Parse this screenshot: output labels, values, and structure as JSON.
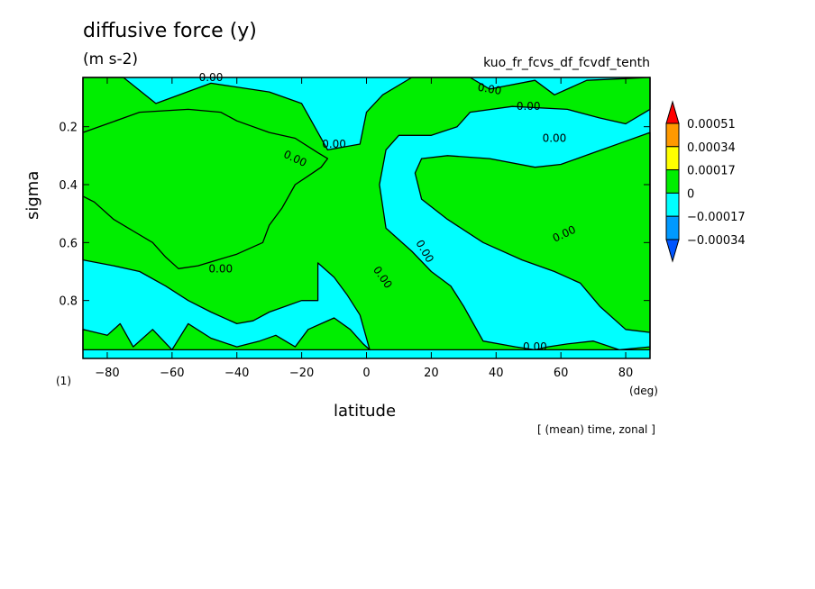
{
  "chart_data": {
    "type": "heatmap",
    "title": "diffusive force (y)",
    "units": "(m s-2)",
    "run_name": "kuo_fr_fcvs_df_fcvdf_tenth",
    "xlabel": "latitude",
    "ylabel": "sigma",
    "x_unit": "(deg)",
    "panel_index": "(1)",
    "note": "[ (mean) time, zonal ]",
    "xlim": [
      -87.5,
      87.5
    ],
    "ylim": [
      1.0,
      0.03
    ],
    "x_ticks": [
      -80,
      -60,
      -40,
      -20,
      0,
      20,
      40,
      60,
      80
    ],
    "x_tick_labels": [
      "−80",
      "−60",
      "−40",
      "−20",
      "0",
      "20",
      "40",
      "60",
      "80"
    ],
    "y_ticks": [
      0.2,
      0.4,
      0.6,
      0.8
    ],
    "y_tick_labels": [
      "0.2",
      "0.4",
      "0.6",
      "0.8"
    ],
    "contour_label": "0.00",
    "colorbar": {
      "levels": [
        "0.00051",
        "0.00034",
        "0.00017",
        "0",
        "−0.00017",
        "−0.00034"
      ],
      "colors": [
        "#ff0000",
        "#ff9900",
        "#ffff00",
        "#00ee00",
        "#00ffff",
        "#0099ff",
        "#0055ff"
      ]
    },
    "regions": [
      {
        "sign": "positive",
        "color": "#00ee00",
        "boundary": [
          [
            -87.5,
            0.03
          ],
          [
            -75,
            0.03
          ],
          [
            -65,
            0.12
          ],
          [
            -48,
            0.05
          ],
          [
            -30,
            0.08
          ],
          [
            -20,
            0.12
          ],
          [
            -12,
            0.28
          ],
          [
            -2,
            0.26
          ],
          [
            0,
            0.15
          ],
          [
            5,
            0.09
          ],
          [
            14,
            0.03
          ],
          [
            32,
            0.03
          ],
          [
            38,
            0.07
          ],
          [
            52,
            0.04
          ],
          [
            58,
            0.09
          ],
          [
            68,
            0.04
          ],
          [
            87.5,
            0.03
          ],
          [
            87.5,
            0.14
          ],
          [
            80,
            0.19
          ],
          [
            72,
            0.17
          ],
          [
            62,
            0.14
          ],
          [
            45,
            0.13
          ],
          [
            32,
            0.15
          ],
          [
            28,
            0.2
          ],
          [
            20,
            0.23
          ],
          [
            10,
            0.23
          ],
          [
            6,
            0.28
          ],
          [
            4,
            0.4
          ],
          [
            6,
            0.55
          ],
          [
            14,
            0.63
          ],
          [
            20,
            0.7
          ],
          [
            26,
            0.75
          ],
          [
            30,
            0.82
          ],
          [
            32,
            0.86
          ],
          [
            36,
            0.94
          ],
          [
            46,
            0.96
          ],
          [
            52,
            0.97
          ],
          [
            56,
            0.96
          ],
          [
            62,
            0.95
          ],
          [
            70,
            0.94
          ],
          [
            78,
            0.97
          ],
          [
            87.5,
            0.96
          ],
          [
            87.5,
            0.91
          ],
          [
            80,
            0.9
          ],
          [
            72,
            0.82
          ],
          [
            66,
            0.74
          ],
          [
            58,
            0.7
          ],
          [
            48,
            0.66
          ],
          [
            36,
            0.6
          ],
          [
            25,
            0.52
          ],
          [
            17,
            0.45
          ],
          [
            15,
            0.36
          ],
          [
            17,
            0.31
          ],
          [
            25,
            0.3
          ],
          [
            38,
            0.31
          ],
          [
            52,
            0.34
          ],
          [
            60,
            0.33
          ],
          [
            70,
            0.29
          ],
          [
            80,
            0.25
          ],
          [
            87.5,
            0.22
          ],
          [
            87.5,
            0.97
          ],
          [
            -87.5,
            0.97
          ],
          [
            -87.5,
            0.9
          ],
          [
            -80,
            0.92
          ],
          [
            -76,
            0.88
          ],
          [
            -72,
            0.96
          ],
          [
            -66,
            0.9
          ],
          [
            -60,
            0.97
          ],
          [
            -55,
            0.88
          ],
          [
            -48,
            0.93
          ],
          [
            -40,
            0.96
          ],
          [
            -33,
            0.94
          ],
          [
            -28,
            0.92
          ],
          [
            -22,
            0.96
          ],
          [
            -18,
            0.9
          ],
          [
            -14,
            0.88
          ],
          [
            -10,
            0.86
          ],
          [
            -5,
            0.9
          ],
          [
            -1,
            0.95
          ],
          [
            1,
            0.97
          ],
          [
            -2,
            0.85
          ],
          [
            -6,
            0.78
          ],
          [
            -10,
            0.72
          ],
          [
            -15,
            0.67
          ],
          [
            -15,
            0.8
          ],
          [
            -20,
            0.8
          ],
          [
            -25,
            0.82
          ],
          [
            -30,
            0.84
          ],
          [
            -35,
            0.87
          ],
          [
            -40,
            0.88
          ],
          [
            -48,
            0.84
          ],
          [
            -55,
            0.8
          ],
          [
            -62,
            0.75
          ],
          [
            -70,
            0.7
          ],
          [
            -78,
            0.68
          ],
          [
            -87.5,
            0.66
          ],
          [
            -87.5,
            0.22
          ],
          [
            -80,
            0.19
          ],
          [
            -70,
            0.15
          ],
          [
            -55,
            0.14
          ],
          [
            -45,
            0.15
          ],
          [
            -40,
            0.18
          ],
          [
            -30,
            0.22
          ],
          [
            -22,
            0.24
          ],
          [
            -15,
            0.29
          ],
          [
            -12,
            0.31
          ],
          [
            -14,
            0.34
          ],
          [
            -18,
            0.37
          ],
          [
            -22,
            0.4
          ],
          [
            -26,
            0.48
          ],
          [
            -30,
            0.54
          ],
          [
            -32,
            0.6
          ],
          [
            -40,
            0.64
          ],
          [
            -46,
            0.66
          ],
          [
            -52,
            0.68
          ],
          [
            -58,
            0.69
          ],
          [
            -62,
            0.65
          ],
          [
            -66,
            0.6
          ],
          [
            -72,
            0.56
          ],
          [
            -78,
            0.52
          ],
          [
            -84,
            0.46
          ],
          [
            -87.5,
            0.44
          ],
          [
            -87.5,
            0.03
          ]
        ]
      }
    ]
  }
}
